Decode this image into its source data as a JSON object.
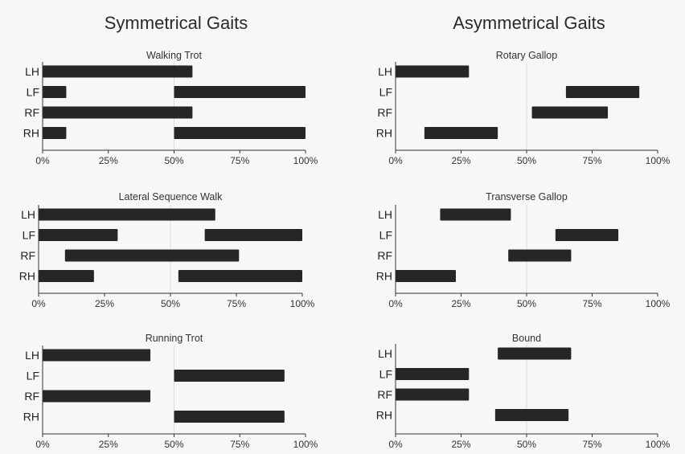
{
  "page": {
    "left_title": "Symmetrical Gaits",
    "right_title": "Asymmetrical Gaits"
  },
  "chart_data": [
    {
      "type": "bar",
      "subtype": "gantt",
      "group": "Symmetrical Gaits",
      "title": "Walking Trot",
      "categories": [
        "LH",
        "LF",
        "RF",
        "RH"
      ],
      "segments": [
        [
          [
            0,
            57
          ]
        ],
        [
          [
            0,
            9
          ],
          [
            50,
            100
          ]
        ],
        [
          [
            0,
            57
          ]
        ],
        [
          [
            0,
            9
          ],
          [
            50,
            100
          ]
        ]
      ],
      "xlim": [
        0,
        100
      ],
      "xticks": [
        "0%",
        "25%",
        "50%",
        "75%",
        "100%"
      ]
    },
    {
      "type": "bar",
      "subtype": "gantt",
      "group": "Symmetrical Gaits",
      "title": "Lateral Sequence Walk",
      "categories": [
        "LH",
        "LF",
        "RF",
        "RH"
      ],
      "segments": [
        [
          [
            0,
            67
          ]
        ],
        [
          [
            0,
            30
          ],
          [
            63,
            100
          ]
        ],
        [
          [
            10,
            76
          ]
        ],
        [
          [
            0,
            21
          ],
          [
            53,
            100
          ]
        ]
      ],
      "xlim": [
        0,
        100
      ],
      "xticks": [
        "0%",
        "25%",
        "50%",
        "75%",
        "100%"
      ]
    },
    {
      "type": "bar",
      "subtype": "gantt",
      "group": "Symmetrical Gaits",
      "title": "Running Trot",
      "categories": [
        "LH",
        "LF",
        "RF",
        "RH"
      ],
      "segments": [
        [
          [
            0,
            41
          ]
        ],
        [
          [
            50,
            92
          ]
        ],
        [
          [
            0,
            41
          ]
        ],
        [
          [
            50,
            92
          ]
        ]
      ],
      "xlim": [
        0,
        100
      ],
      "xticks": [
        "0%",
        "25%",
        "50%",
        "75%",
        "100%"
      ]
    },
    {
      "type": "bar",
      "subtype": "gantt",
      "group": "Asymmetrical Gaits",
      "title": "Rotary Gallop",
      "categories": [
        "LH",
        "LF",
        "RF",
        "RH"
      ],
      "segments": [
        [
          [
            0,
            28
          ]
        ],
        [
          [
            65,
            93
          ]
        ],
        [
          [
            52,
            81
          ]
        ],
        [
          [
            11,
            39
          ]
        ]
      ],
      "xlim": [
        0,
        100
      ],
      "xticks": [
        "0%",
        "25%",
        "50%",
        "75%",
        "100%"
      ]
    },
    {
      "type": "bar",
      "subtype": "gantt",
      "group": "Asymmetrical Gaits",
      "title": "Transverse Gallop",
      "categories": [
        "LH",
        "LF",
        "RF",
        "RH"
      ],
      "segments": [
        [
          [
            17,
            44
          ]
        ],
        [
          [
            61,
            85
          ]
        ],
        [
          [
            43,
            67
          ]
        ],
        [
          [
            0,
            23
          ]
        ]
      ],
      "xlim": [
        0,
        100
      ],
      "xticks": [
        "0%",
        "25%",
        "50%",
        "75%",
        "100%"
      ]
    },
    {
      "type": "bar",
      "subtype": "gantt",
      "group": "Asymmetrical Gaits",
      "title": "Bound",
      "categories": [
        "LH",
        "LF",
        "RF",
        "RH"
      ],
      "segments": [
        [
          [
            39,
            67
          ]
        ],
        [
          [
            0,
            28
          ]
        ],
        [
          [
            0,
            28
          ]
        ],
        [
          [
            38,
            66
          ]
        ]
      ],
      "xlim": [
        0,
        100
      ],
      "xticks": [
        "0%",
        "25%",
        "50%",
        "75%",
        "100%"
      ]
    }
  ]
}
